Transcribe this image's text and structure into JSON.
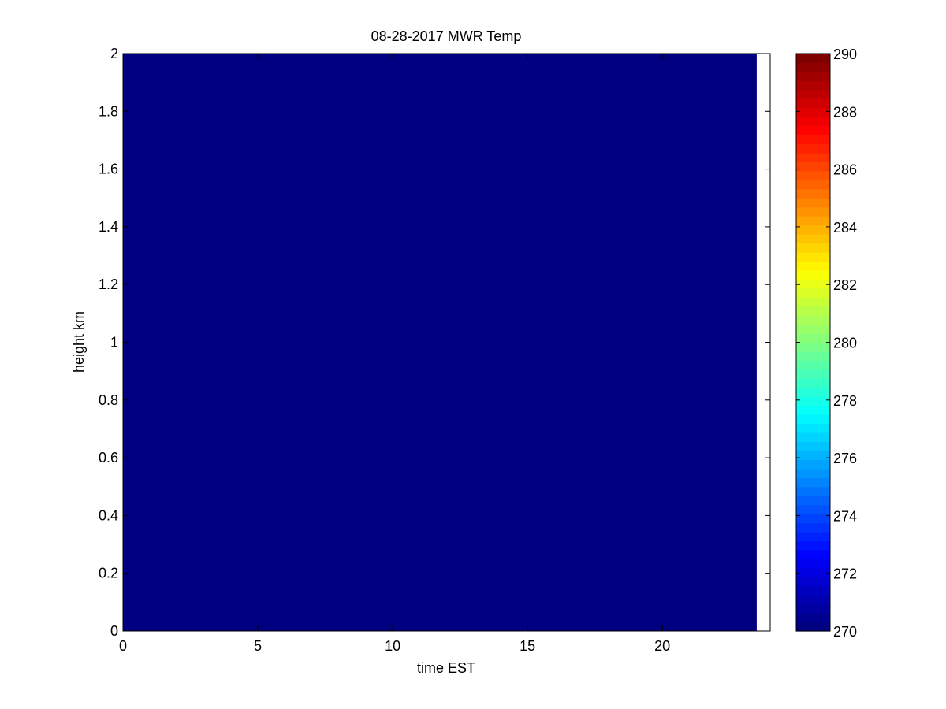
{
  "chart_data": {
    "type": "heatmap",
    "title": "08-28-2017 MWR Temp",
    "xlabel": "time EST",
    "ylabel": "height km",
    "xlim": [
      0,
      24
    ],
    "ylim": [
      0,
      2
    ],
    "xticks": [
      0,
      5,
      10,
      15,
      20
    ],
    "yticks": [
      0,
      0.2,
      0.4,
      0.6,
      0.8,
      1,
      1.2,
      1.4,
      1.6,
      1.8,
      2
    ],
    "data_x_extent": [
      0,
      23.5
    ],
    "data_y_extent": [
      0,
      2
    ],
    "cell_value": 270,
    "colormap": "jet",
    "colorbar": {
      "range": [
        270,
        290
      ],
      "ticks": [
        270,
        272,
        274,
        276,
        278,
        280,
        282,
        284,
        286,
        288,
        290
      ],
      "position": "right"
    },
    "grid": false
  }
}
